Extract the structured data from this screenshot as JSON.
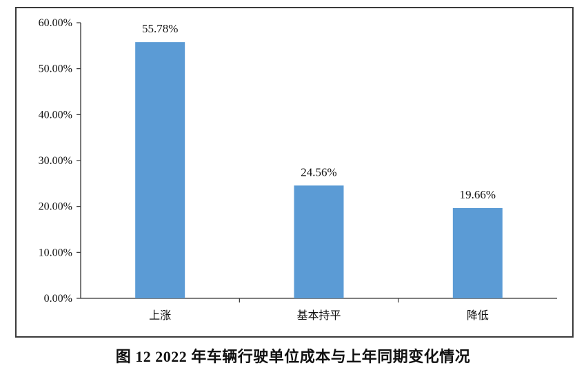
{
  "caption": "图 12 2022 年车辆行驶单位成本与上年同期变化情况",
  "chart_data": {
    "type": "bar",
    "categories": [
      "上涨",
      "基本持平",
      "降低"
    ],
    "values": [
      55.78,
      24.56,
      19.66
    ],
    "data_labels": [
      "55.78%",
      "24.56%",
      "19.66%"
    ],
    "ylim": [
      0,
      60
    ],
    "yticks": [
      0,
      10,
      20,
      30,
      40,
      50,
      60
    ],
    "ytick_labels": [
      "0.00%",
      "10.00%",
      "20.00%",
      "30.00%",
      "40.00%",
      "50.00%",
      "60.00%"
    ],
    "grid": false,
    "legend": "none",
    "bar_color": "#5b9bd5"
  }
}
